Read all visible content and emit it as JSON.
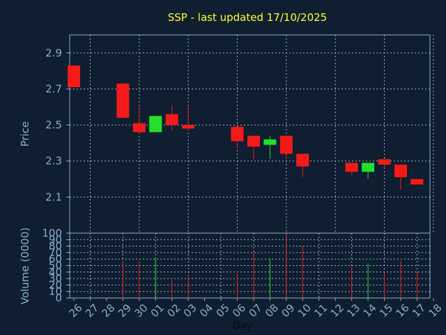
{
  "chart_data": [
    {
      "type": "candlestick",
      "title": "SSP - last updated 17/10/2025",
      "ylabel": "Price",
      "ylim": [
        1.9,
        3.0
      ],
      "yticks": [
        "2.1",
        "2.3",
        "2.5",
        "2.7",
        "2.9"
      ],
      "grid": true,
      "categories": [
        "26",
        "27",
        "28",
        "29",
        "30",
        "01",
        "02",
        "03",
        "04",
        "05",
        "06",
        "07",
        "08",
        "09",
        "10",
        "11",
        "12",
        "13",
        "14",
        "15",
        "16",
        "17",
        "18"
      ],
      "candles": [
        {
          "x": "26",
          "open": 2.83,
          "high": 2.83,
          "low": 2.71,
          "close": 2.71
        },
        {
          "x": "29",
          "open": 2.73,
          "high": 2.73,
          "low": 2.54,
          "close": 2.54
        },
        {
          "x": "30",
          "open": 2.51,
          "high": 2.6,
          "low": 2.45,
          "close": 2.46
        },
        {
          "x": "01",
          "open": 2.46,
          "high": 2.55,
          "low": 2.46,
          "close": 2.55
        },
        {
          "x": "02",
          "open": 2.56,
          "high": 2.61,
          "low": 2.47,
          "close": 2.5
        },
        {
          "x": "03",
          "open": 2.5,
          "high": 2.6,
          "low": 2.47,
          "close": 2.48
        },
        {
          "x": "06",
          "open": 2.49,
          "high": 2.49,
          "low": 2.37,
          "close": 2.41
        },
        {
          "x": "07",
          "open": 2.44,
          "high": 2.44,
          "low": 2.31,
          "close": 2.38
        },
        {
          "x": "08",
          "open": 2.39,
          "high": 2.44,
          "low": 2.31,
          "close": 2.42
        },
        {
          "x": "09",
          "open": 2.44,
          "high": 2.44,
          "low": 2.31,
          "close": 2.34
        },
        {
          "x": "10",
          "open": 2.34,
          "high": 2.34,
          "low": 2.21,
          "close": 2.27
        },
        {
          "x": "13",
          "open": 2.29,
          "high": 2.29,
          "low": 2.22,
          "close": 2.24
        },
        {
          "x": "14",
          "open": 2.24,
          "high": 2.29,
          "low": 2.2,
          "close": 2.29
        },
        {
          "x": "15",
          "open": 2.31,
          "high": 2.31,
          "low": 2.26,
          "close": 2.28
        },
        {
          "x": "16",
          "open": 2.28,
          "high": 2.28,
          "low": 2.14,
          "close": 2.21
        },
        {
          "x": "17",
          "open": 2.2,
          "high": 2.2,
          "low": 2.17,
          "close": 2.17
        }
      ],
      "colors": {
        "up": "#22e02c",
        "down": "#f51a1a"
      }
    },
    {
      "type": "bar",
      "ylabel": "Volume (0000)",
      "xlabel": "Day",
      "ylim": [
        0,
        100
      ],
      "yticks": [
        "0",
        "10",
        "20",
        "30",
        "40",
        "50",
        "60",
        "70",
        "80",
        "90",
        "100"
      ],
      "grid": true,
      "categories": [
        "26",
        "27",
        "28",
        "29",
        "30",
        "01",
        "02",
        "03",
        "04",
        "05",
        "06",
        "07",
        "08",
        "09",
        "10",
        "11",
        "12",
        "13",
        "14",
        "15",
        "16",
        "17",
        "18"
      ],
      "bars": [
        {
          "x": "29",
          "value": 57,
          "direction": "down"
        },
        {
          "x": "30",
          "value": 57,
          "direction": "down"
        },
        {
          "x": "01",
          "value": 60,
          "direction": "up"
        },
        {
          "x": "02",
          "value": 28,
          "direction": "down"
        },
        {
          "x": "03",
          "value": 36,
          "direction": "down"
        },
        {
          "x": "06",
          "value": 38,
          "direction": "down"
        },
        {
          "x": "07",
          "value": 70,
          "direction": "down"
        },
        {
          "x": "08",
          "value": 60,
          "direction": "up"
        },
        {
          "x": "09",
          "value": 98,
          "direction": "down"
        },
        {
          "x": "10",
          "value": 80,
          "direction": "down"
        },
        {
          "x": "13",
          "value": 48,
          "direction": "down"
        },
        {
          "x": "14",
          "value": 53,
          "direction": "up"
        },
        {
          "x": "15",
          "value": 39,
          "direction": "down"
        },
        {
          "x": "16",
          "value": 57,
          "direction": "down"
        },
        {
          "x": "17",
          "value": 39,
          "direction": "down"
        }
      ],
      "colors": {
        "up": "#22e02c",
        "down": "#f51a1a"
      }
    }
  ]
}
